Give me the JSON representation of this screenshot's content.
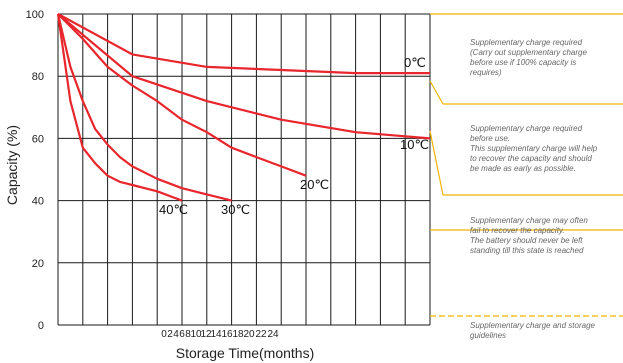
{
  "chart_data": {
    "type": "line",
    "xlabel": "Storage Time(months)",
    "ylabel": "Capacity  (%)",
    "ylim": [
      0,
      100
    ],
    "y_ticks": [
      "0",
      "20",
      "40",
      "60",
      "80",
      "100"
    ],
    "x_tick_labels": [
      "0",
      "2",
      "4",
      "6",
      "8",
      "10",
      "12",
      "14",
      "16",
      "18",
      "20",
      "22",
      "24"
    ],
    "grid": true,
    "line_color": "#e8262c",
    "series": [
      {
        "name": "0℃",
        "x": [
          0,
          6,
          12,
          18,
          24,
          30
        ],
        "y": [
          100,
          87,
          83,
          82,
          81,
          81
        ]
      },
      {
        "name": "10℃",
        "x": [
          0,
          6,
          12,
          18,
          24,
          30
        ],
        "y": [
          100,
          80,
          72,
          66,
          62,
          60
        ]
      },
      {
        "name": "20℃",
        "x": [
          0,
          2,
          4,
          6,
          8,
          10,
          12,
          14,
          16,
          18,
          20
        ],
        "y": [
          100,
          92,
          83,
          77,
          72,
          66,
          62,
          57,
          54,
          51,
          48
        ]
      },
      {
        "name": "30℃",
        "x": [
          0,
          1,
          2,
          3,
          4,
          5,
          6,
          8,
          10,
          12,
          14
        ],
        "y": [
          100,
          83,
          72,
          63,
          58,
          54,
          51,
          47,
          44,
          42,
          40
        ]
      },
      {
        "name": "40℃",
        "x": [
          0,
          1,
          2,
          3,
          4,
          5,
          6,
          8,
          10
        ],
        "y": [
          100,
          72,
          57,
          52,
          48,
          46,
          45,
          43,
          40
        ]
      }
    ]
  },
  "zones": {
    "accent_color": "#f0b400",
    "items": [
      {
        "lines": [
          "Supplementary charge required",
          "(Carry out supplementary charge",
          "before use if 100% capacity is",
          "requires)"
        ]
      },
      {
        "lines": [
          "Supplementary charge required",
          "before use.",
          "This supplementary charge will help",
          "to recover the capacity and should",
          "be made  as early as possible."
        ]
      },
      {
        "lines": [
          "Supplementary charge may often",
          "fail to recover the capacity.",
          "The battery should never be left",
          "standing till this state is reached"
        ]
      },
      {
        "lines": [
          "Supplementary charge and storage",
          "guidelines"
        ]
      }
    ]
  }
}
